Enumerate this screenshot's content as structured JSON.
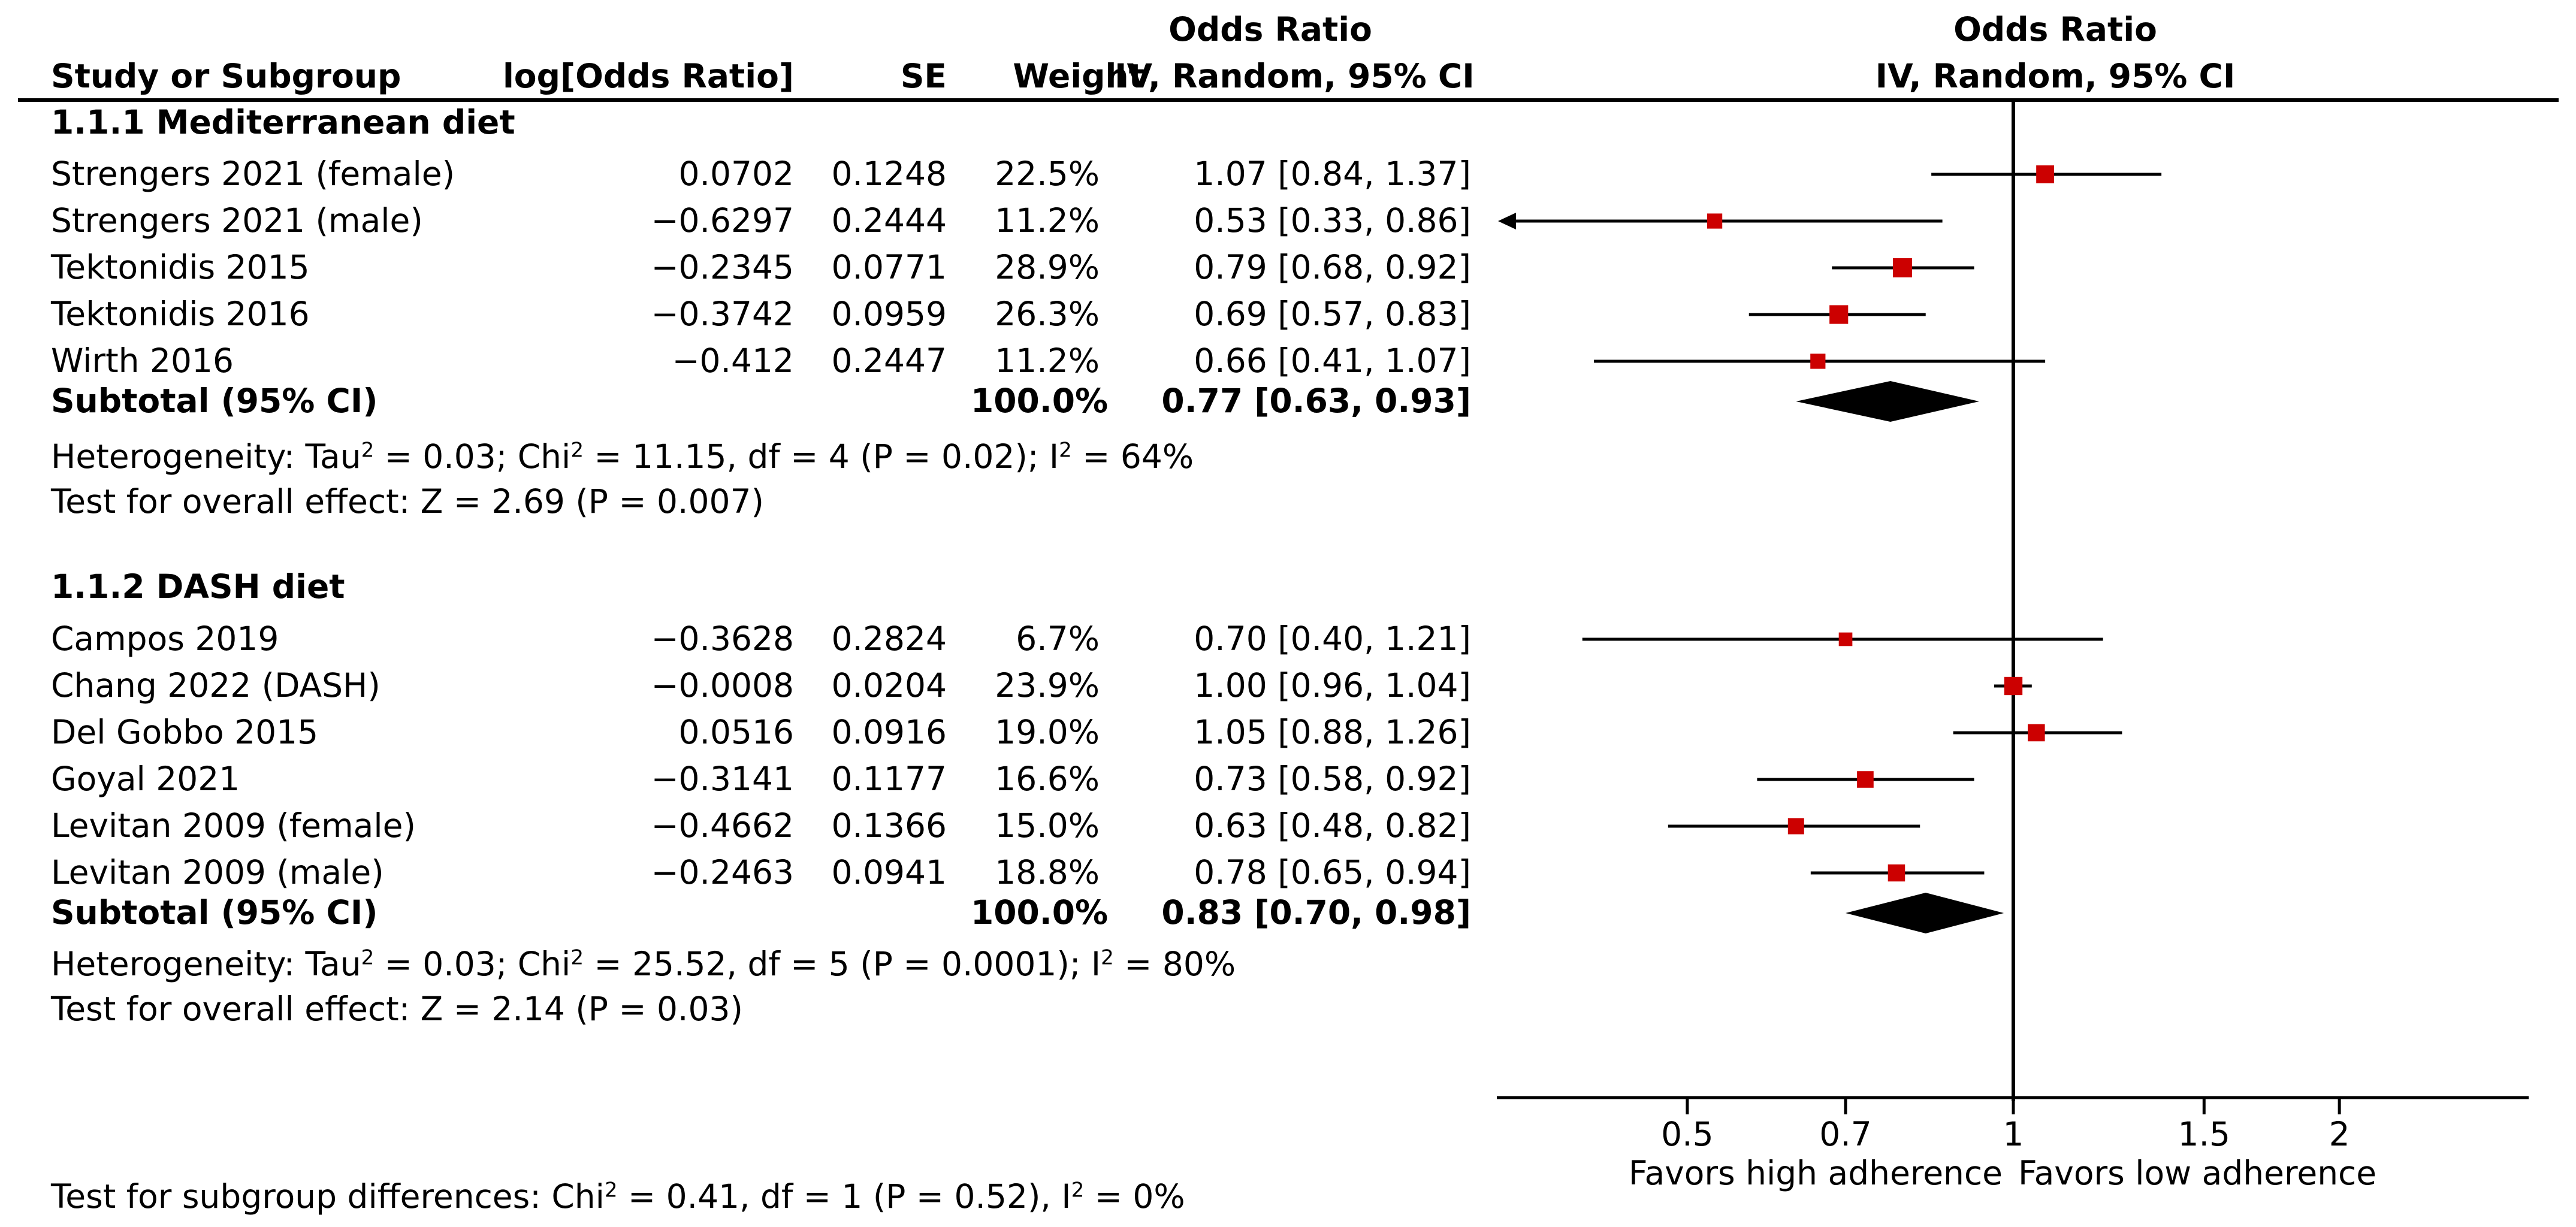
{
  "headers": {
    "study": "Study or Subgroup",
    "log_or": "log[Odds Ratio]",
    "se": "SE",
    "weight": "Weight",
    "or_top": "Odds Ratio",
    "or_bottom": "IV, Random, 95% CI",
    "plot_top": "Odds Ratio",
    "plot_bottom": "IV, Random, 95% CI"
  },
  "groups": [
    {
      "title": "1.1.1 Mediterranean diet",
      "studies": [
        {
          "name": "Strengers 2021 (female)",
          "log_or": "0.0702",
          "se": "0.1248",
          "weight": "22.5%",
          "ci_text": "1.07 [0.84, 1.37]"
        },
        {
          "name": "Strengers 2021 (male)",
          "log_or": "−0.6297",
          "se": "0.2444",
          "weight": "11.2%",
          "ci_text": "0.53 [0.33, 0.86]"
        },
        {
          "name": "Tektonidis 2015",
          "log_or": "−0.2345",
          "se": "0.0771",
          "weight": "28.9%",
          "ci_text": "0.79 [0.68, 0.92]"
        },
        {
          "name": "Tektonidis 2016",
          "log_or": "−0.3742",
          "se": "0.0959",
          "weight": "26.3%",
          "ci_text": "0.69 [0.57, 0.83]"
        },
        {
          "name": "Wirth 2016",
          "log_or": "−0.412",
          "se": "0.2447",
          "weight": "11.2%",
          "ci_text": "0.66 [0.41, 1.07]"
        }
      ],
      "subtotal_label": "Subtotal (95% CI)",
      "subtotal_weight": "100.0%",
      "subtotal_text": "0.77 [0.63, 0.93]",
      "heterogeneity": {
        "prefix": "Heterogeneity: Tau",
        "sup1": "2",
        "mid1": " = 0.03; Chi",
        "sup2": "2",
        "mid2": " = 11.15, df = 4 (P = 0.02); I",
        "sup3": "2",
        "suffix": " = 64%"
      },
      "overall_effect": "Test for overall effect: Z = 2.69 (P = 0.007)"
    },
    {
      "title": "1.1.2 DASH diet",
      "studies": [
        {
          "name": "Campos 2019",
          "log_or": "−0.3628",
          "se": "0.2824",
          "weight": "6.7%",
          "ci_text": "0.70 [0.40, 1.21]"
        },
        {
          "name": "Chang 2022 (DASH)",
          "log_or": "−0.0008",
          "se": "0.0204",
          "weight": "23.9%",
          "ci_text": "1.00 [0.96, 1.04]"
        },
        {
          "name": "Del Gobbo 2015",
          "log_or": "0.0516",
          "se": "0.0916",
          "weight": "19.0%",
          "ci_text": "1.05 [0.88, 1.26]"
        },
        {
          "name": "Goyal 2021",
          "log_or": "−0.3141",
          "se": "0.1177",
          "weight": "16.6%",
          "ci_text": "0.73 [0.58, 0.92]"
        },
        {
          "name": "Levitan 2009 (female)",
          "log_or": "−0.4662",
          "se": "0.1366",
          "weight": "15.0%",
          "ci_text": "0.63 [0.48, 0.82]"
        },
        {
          "name": "Levitan 2009 (male)",
          "log_or": "−0.2463",
          "se": "0.0941",
          "weight": "18.8%",
          "ci_text": "0.78 [0.65, 0.94]"
        }
      ],
      "subtotal_label": "Subtotal (95% CI)",
      "subtotal_weight": "100.0%",
      "subtotal_text": "0.83 [0.70, 0.98]",
      "heterogeneity": {
        "prefix": "Heterogeneity: Tau",
        "sup1": "2",
        "mid1": " = 0.03; Chi",
        "sup2": "2",
        "mid2": " = 25.52, df = 5 (P = 0.0001); I",
        "sup3": "2",
        "suffix": " = 80%"
      },
      "overall_effect": "Test for overall effect: Z = 2.14 (P = 0.03)"
    }
  ],
  "subgroup_test": {
    "prefix": "Test for subgroup differences: Chi",
    "sup1": "2",
    "mid1": " = 0.41, df = 1 (P = 0.52), I",
    "sup2": "2",
    "suffix": " = 0%"
  },
  "axis": {
    "left_label": "Favors high adherence",
    "right_label": "Favors low adherence"
  },
  "colors": {
    "marker": "#cc0000",
    "line": "#000000"
  },
  "chart_data": {
    "type": "forest",
    "x_scale": "log",
    "xlim": [
      0.26,
      4.1
    ],
    "null_line": 1,
    "ticks": [
      {
        "value": 0.5,
        "label": "0.5"
      },
      {
        "value": 0.7,
        "label": "0.7"
      },
      {
        "value": 1,
        "label": "1"
      },
      {
        "value": 1.5,
        "label": "1.5"
      },
      {
        "value": 2,
        "label": "2"
      }
    ],
    "groups": [
      {
        "name": "1.1.1 Mediterranean diet",
        "studies": [
          {
            "name": "Strengers 2021 (female)",
            "or": 1.07,
            "lo": 0.84,
            "hi": 1.37,
            "weight": 22.5
          },
          {
            "name": "Strengers 2021 (male)",
            "or": 0.53,
            "lo": 0.33,
            "hi": 0.86,
            "weight": 11.2
          },
          {
            "name": "Tektonidis 2015",
            "or": 0.79,
            "lo": 0.68,
            "hi": 0.92,
            "weight": 28.9
          },
          {
            "name": "Tektonidis 2016",
            "or": 0.69,
            "lo": 0.57,
            "hi": 0.83,
            "weight": 26.3
          },
          {
            "name": "Wirth 2016",
            "or": 0.66,
            "lo": 0.41,
            "hi": 1.07,
            "weight": 11.2
          }
        ],
        "subtotal": {
          "or": 0.77,
          "lo": 0.63,
          "hi": 0.93
        }
      },
      {
        "name": "1.1.2 DASH diet",
        "studies": [
          {
            "name": "Campos 2019",
            "or": 0.7,
            "lo": 0.4,
            "hi": 1.21,
            "weight": 6.7
          },
          {
            "name": "Chang 2022 (DASH)",
            "or": 1.0,
            "lo": 0.96,
            "hi": 1.04,
            "weight": 23.9
          },
          {
            "name": "Del Gobbo 2015",
            "or": 1.05,
            "lo": 0.88,
            "hi": 1.26,
            "weight": 19.0
          },
          {
            "name": "Goyal 2021",
            "or": 0.73,
            "lo": 0.58,
            "hi": 0.92,
            "weight": 16.6
          },
          {
            "name": "Levitan 2009 (female)",
            "or": 0.63,
            "lo": 0.48,
            "hi": 0.82,
            "weight": 15.0
          },
          {
            "name": "Levitan 2009 (male)",
            "or": 0.78,
            "lo": 0.65,
            "hi": 0.94,
            "weight": 18.8
          }
        ],
        "subtotal": {
          "or": 0.83,
          "lo": 0.7,
          "hi": 0.98
        }
      }
    ]
  }
}
